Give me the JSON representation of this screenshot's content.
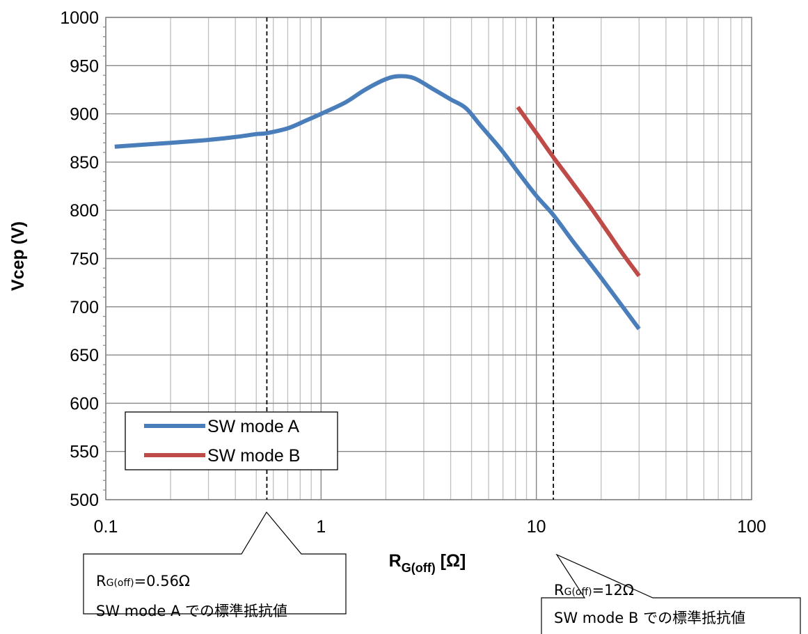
{
  "chart_data": {
    "type": "line",
    "x_scale": "log",
    "xlim": [
      0.1,
      100
    ],
    "ylim": [
      500,
      1000
    ],
    "x_ticks": [
      0.1,
      1,
      10,
      100
    ],
    "x_tick_labels": [
      "0.1",
      "1",
      "10",
      "100"
    ],
    "y_ticks": [
      500,
      550,
      600,
      650,
      700,
      750,
      800,
      850,
      900,
      950,
      1000
    ],
    "y_tick_labels": [
      "500",
      "550",
      "600",
      "650",
      "700",
      "750",
      "800",
      "850",
      "900",
      "950",
      "1000"
    ],
    "xlabel": {
      "main": "R",
      "sub": "G(off)",
      "unit": " [Ω]"
    },
    "ylabel": "Vcep (V)",
    "grid": true,
    "legend_position": "bottom-left",
    "series": [
      {
        "name": "SW mode A",
        "color": "#4a7ebb",
        "x": [
          0.11,
          0.2,
          0.3,
          0.4,
          0.5,
          0.56,
          0.7,
          0.85,
          1.0,
          1.3,
          1.6,
          2.0,
          2.3,
          2.7,
          3.3,
          4.0,
          4.7,
          5.5,
          6.8,
          8.2,
          10,
          12,
          15,
          20,
          30
        ],
        "y": [
          866,
          870,
          873,
          876,
          879,
          880,
          885,
          893,
          900,
          912,
          925,
          936,
          939,
          937,
          926,
          915,
          906,
          888,
          864,
          840,
          815,
          795,
          766,
          730,
          677
        ]
      },
      {
        "name": "SW mode B",
        "color": "#be4b48",
        "x": [
          8.2,
          10,
          12,
          15,
          18,
          22,
          25,
          30
        ],
        "y": [
          907,
          880,
          855,
          826,
          802,
          774,
          756,
          732
        ]
      }
    ],
    "reference_lines": [
      0.56,
      12
    ],
    "callouts": [
      {
        "main": "R",
        "sub": "G(off)",
        "value": "=0.56Ω",
        "desc": "SW mode A での標準抵抗値",
        "x": 0.56
      },
      {
        "main": "R",
        "sub": "G(off)",
        "value": "=12Ω",
        "desc": "SW mode B での標準抵抗値",
        "x": 12
      }
    ]
  }
}
